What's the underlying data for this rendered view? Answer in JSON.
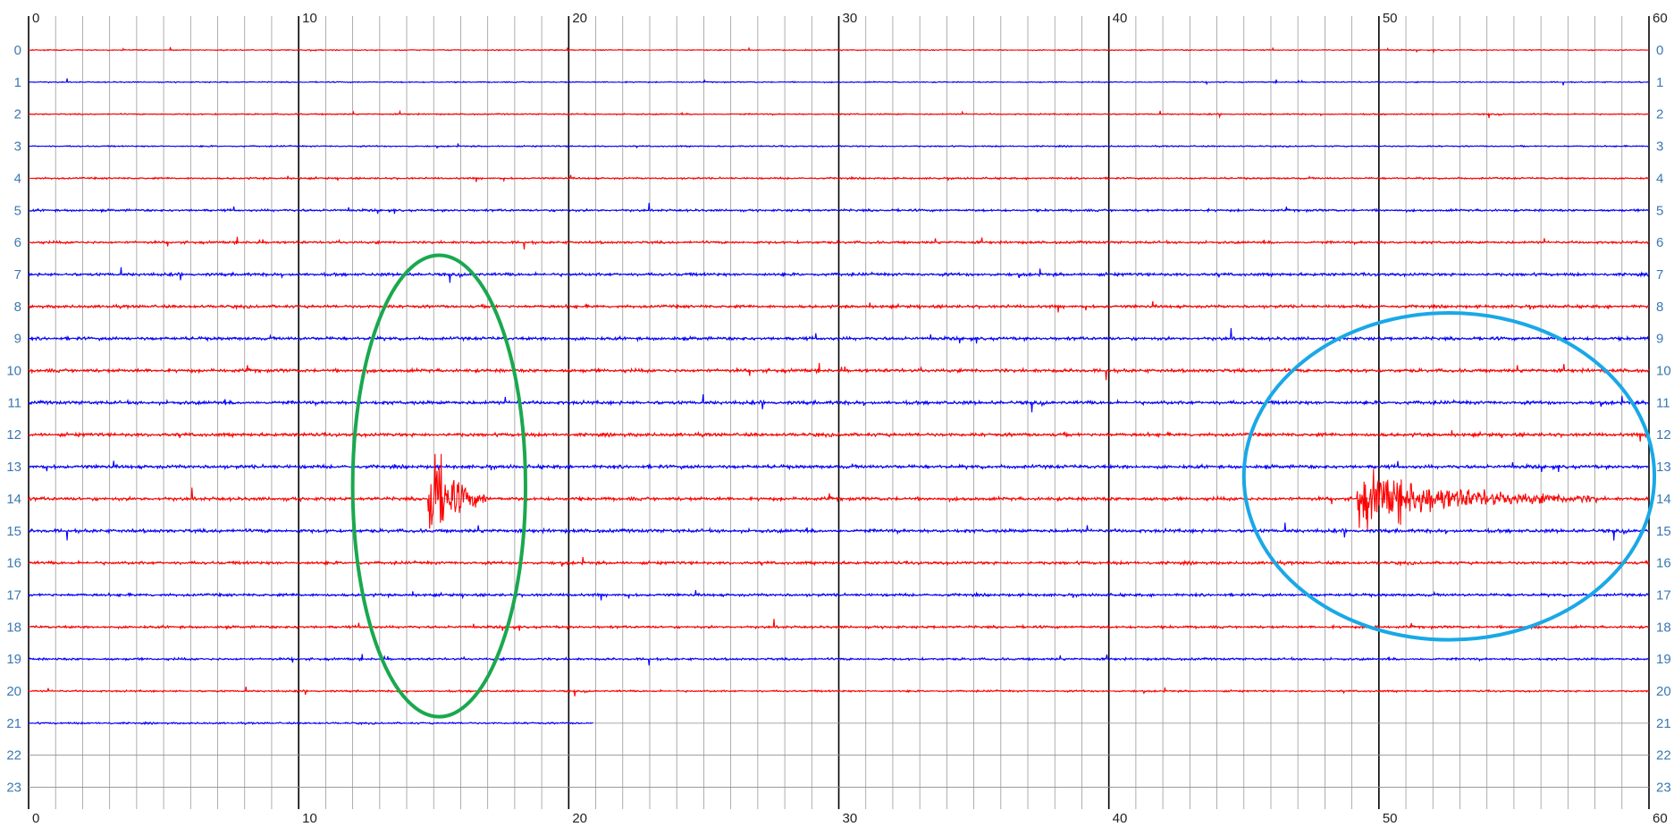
{
  "chart_data": {
    "type": "line",
    "title": "",
    "xlabel": "",
    "ylabel": "",
    "x_ticks": [
      0,
      10,
      20,
      30,
      40,
      50,
      60
    ],
    "x_range": [
      0,
      60
    ],
    "minor_grid_step": 1,
    "grid": true,
    "rows": [
      0,
      1,
      2,
      3,
      4,
      5,
      6,
      7,
      8,
      9,
      10,
      11,
      12,
      13,
      14,
      15,
      16,
      17,
      18,
      19,
      20,
      21,
      22,
      23
    ],
    "trace_colors": [
      "#ff0000",
      "#0000ff"
    ],
    "row_baseline_amplitude": [
      1,
      1,
      1.2,
      1.2,
      1.6,
      2,
      2.2,
      2.6,
      2.6,
      2.8,
      3,
      3,
      3,
      3,
      3,
      3,
      2.6,
      2.4,
      2.2,
      2,
      1.6,
      1.6
    ],
    "recording_end_minute": 21,
    "events": [
      {
        "row": 14,
        "start_minute": 14.8,
        "peak_amplitude_rows": 3.2,
        "duration_minutes": 2.2
      },
      {
        "row": 14,
        "start_minute": 49.2,
        "peak_amplitude_rows": 1.5,
        "duration_minutes": 9
      }
    ],
    "annotations": [
      {
        "shape": "ellipse",
        "color": "#1aa84e",
        "center_minute": 15.2,
        "center_row": 13.6,
        "half_width_minutes": 3.2,
        "half_height_rows": 7.2
      },
      {
        "shape": "ellipse",
        "color": "#1aa8e6",
        "center_minute": 52.6,
        "center_row": 13.3,
        "half_width_minutes": 7.6,
        "half_height_rows": 5.1
      }
    ],
    "x_tick_labels": [
      "0",
      "10",
      "20",
      "30",
      "40",
      "50",
      "60"
    ],
    "row_labels": [
      "0",
      "1",
      "2",
      "3",
      "4",
      "5",
      "6",
      "7",
      "8",
      "9",
      "10",
      "11",
      "12",
      "13",
      "14",
      "15",
      "16",
      "17",
      "18",
      "19",
      "20",
      "21",
      "22",
      "23"
    ]
  }
}
